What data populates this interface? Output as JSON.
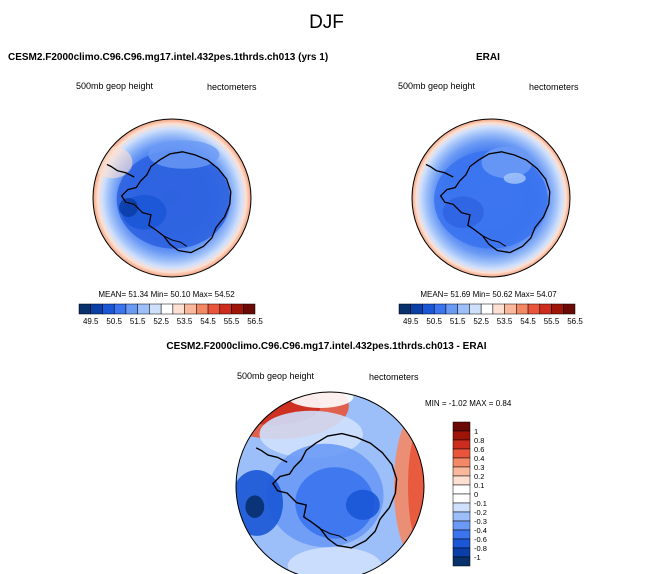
{
  "figure": {
    "title": "DJF"
  },
  "panels": {
    "model": {
      "title": "CESM2.F2000climo.C96.C96.mg17.intel.432pes.1thrds.ch013 (yrs 1)",
      "left_label": "500mb geop height",
      "right_label": "hectometers",
      "stats": "MEAN= 51.34  Min= 50.10  Max= 54.52"
    },
    "obs": {
      "title": "ERAI",
      "left_label": "500mb geop height",
      "right_label": "hectometers",
      "stats": "MEAN= 51.69  Min= 50.62  Max= 54.07"
    },
    "diff": {
      "title": "CESM2.F2000climo.C96.C96.mg17.intel.432pes.1thrds.ch013 - ERAI",
      "left_label": "500mb geop height",
      "right_label": "hectometers",
      "stats": "MIN = -1.02 MAX =  0.84"
    }
  },
  "colors": {
    "blues": [
      "#08306b",
      "#0b3fa8",
      "#1a56d6",
      "#3b74ee",
      "#6b9af5",
      "#9dbff9",
      "#cfe0fc"
    ],
    "white": "#ffffff",
    "reds": [
      "#fde0d2",
      "#f9b89c",
      "#f38866",
      "#e8553a",
      "#cc2c1e",
      "#9e1508",
      "#6b0a04"
    ],
    "coast": "#000000"
  },
  "chart_data": [
    {
      "type": "heatmap",
      "projection": "polar stereographic (south pole)",
      "title": "CESM2.F2000climo.C96.C96.mg17.intel.432pes.1thrds.ch013 (yrs 1)",
      "variable": "500mb geop height",
      "units": "hectometers",
      "mean": 51.34,
      "min": 50.1,
      "max": 54.52,
      "colorbar_ticks": [
        "49.5",
        "50.5",
        "51.5",
        "52.5",
        "53.5",
        "54.5",
        "55.5",
        "56.5"
      ],
      "legend_placement": "bottom"
    },
    {
      "type": "heatmap",
      "projection": "polar stereographic (south pole)",
      "title": "ERAI",
      "variable": "500mb geop height",
      "units": "hectometers",
      "mean": 51.69,
      "min": 50.62,
      "max": 54.07,
      "colorbar_ticks": [
        "49.5",
        "50.5",
        "51.5",
        "52.5",
        "53.5",
        "54.5",
        "55.5",
        "56.5"
      ],
      "legend_placement": "bottom"
    },
    {
      "type": "heatmap",
      "projection": "polar stereographic (south pole)",
      "title": "CESM2.F2000climo.C96.C96.mg17.intel.432pes.1thrds.ch013 - ERAI",
      "variable": "500mb geop height",
      "units": "hectometers",
      "min": -1.02,
      "max": 0.84,
      "colorbar_ticks": [
        "1",
        "0.8",
        "0.6",
        "0.4",
        "0.3",
        "0.2",
        "0.1",
        "0",
        "-0.1",
        "-0.2",
        "-0.3",
        "-0.4",
        "-0.6",
        "-0.8",
        "-1"
      ],
      "legend_placement": "right"
    }
  ]
}
